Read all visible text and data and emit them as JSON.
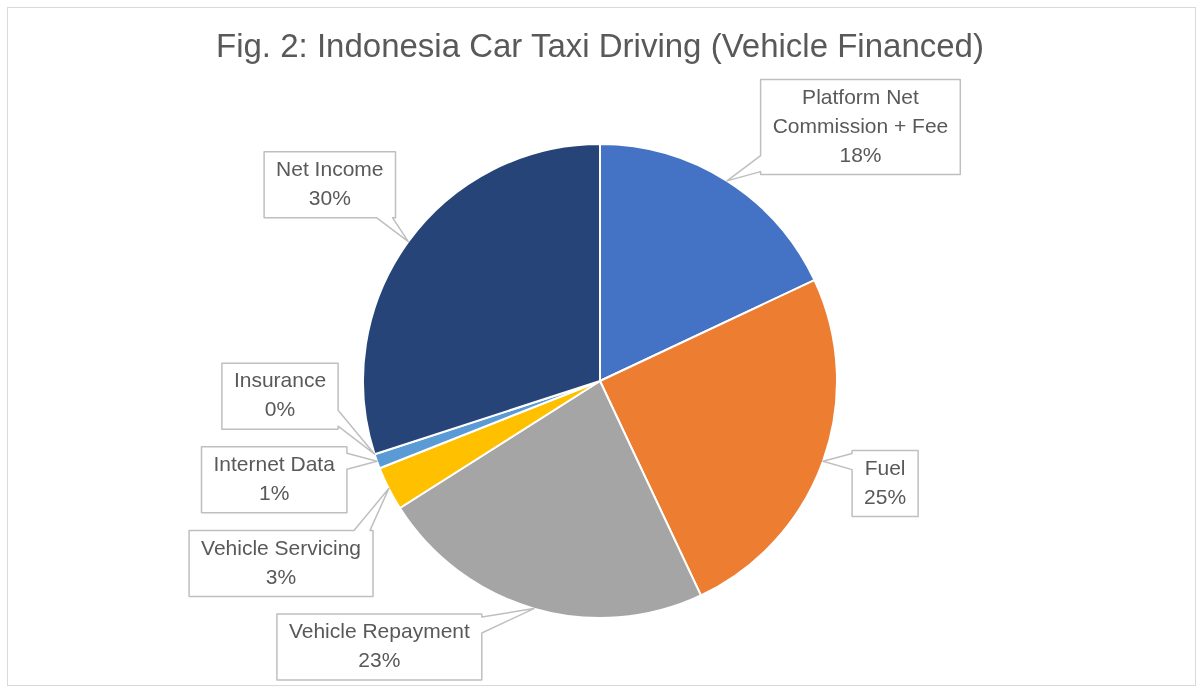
{
  "chart_data": {
    "type": "pie",
    "title": "Fig. 2: Indonesia Car Taxi Driving (Vehicle Financed)",
    "categories": [
      "Platform Net Commission + Fee",
      "Fuel",
      "Vehicle Repayment",
      "Vehicle Servicing",
      "Internet Data",
      "Insurance",
      "Net Income"
    ],
    "values": [
      18,
      25,
      23,
      3,
      1,
      0,
      30
    ],
    "colors": [
      "#4472c4",
      "#ed7d31",
      "#a5a5a5",
      "#ffc000",
      "#5b9bd5",
      "#70ad47",
      "#264478"
    ],
    "value_labels": [
      "18%",
      "25%",
      "23%",
      "3%",
      "1%",
      "0%",
      "30%"
    ]
  }
}
